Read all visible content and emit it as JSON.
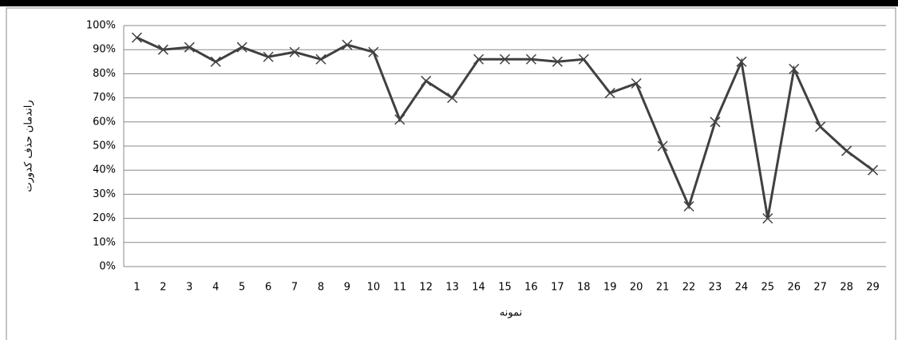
{
  "chart_data": {
    "type": "line",
    "x_label": "نمونه",
    "y_label": "راندمان حذف کدورت",
    "categories": [
      "1",
      "2",
      "3",
      "4",
      "5",
      "6",
      "7",
      "8",
      "9",
      "10",
      "11",
      "12",
      "13",
      "14",
      "15",
      "16",
      "17",
      "18",
      "19",
      "20",
      "21",
      "22",
      "23",
      "24",
      "25",
      "26",
      "27",
      "28",
      "29"
    ],
    "series": [
      {
        "name": "راندمان",
        "color": "#404040",
        "values": [
          95,
          90,
          91,
          85,
          91,
          87,
          89,
          86,
          92,
          89,
          61,
          77,
          70,
          86,
          86,
          86,
          85,
          86,
          72,
          76,
          50,
          25,
          60,
          85,
          20,
          82,
          58,
          48,
          40
        ]
      }
    ],
    "ylim": [
      0,
      100
    ],
    "yticks": [
      {
        "value": 0,
        "label": "0%"
      },
      {
        "value": 10,
        "label": "10%"
      },
      {
        "value": 20,
        "label": "20%"
      },
      {
        "value": 30,
        "label": "30%"
      },
      {
        "value": 40,
        "label": "40%"
      },
      {
        "value": 50,
        "label": "50%"
      },
      {
        "value": 60,
        "label": "60%"
      },
      {
        "value": 70,
        "label": "70%"
      },
      {
        "value": 80,
        "label": "80%"
      },
      {
        "value": 90,
        "label": "90%"
      },
      {
        "value": 100,
        "label": "100%"
      }
    ],
    "grid": true
  }
}
